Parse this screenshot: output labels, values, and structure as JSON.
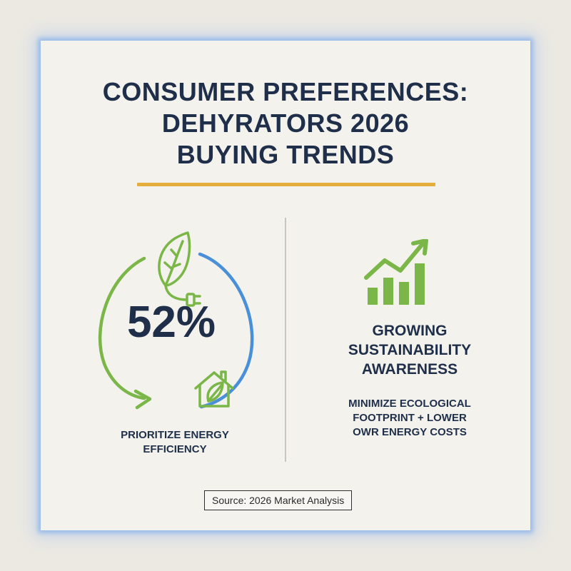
{
  "title": {
    "line1": "CONSUMER PREFERENCES:",
    "line2": "DEHYRATORS 2026",
    "line3": "BUYING TRENDS"
  },
  "left_panel": {
    "percent": "52%",
    "caption_line1": "PRIORITIZE ENERGY",
    "caption_line2": "EFFICIENCY",
    "icons": [
      "leaf-plug-icon",
      "eco-house-icon",
      "cycle-arrows-icon"
    ]
  },
  "right_panel": {
    "heading_line1": "GROWING",
    "heading_line2": "SUSTAINABILITY",
    "heading_line3": "AWARENESS",
    "sub_line1": "MINIMIZE ECOLOGICAL",
    "sub_line2": "FOOTPRINT + LOWER",
    "sub_line3": "OWR ENERGY COSTS",
    "icons": [
      "growth-chart-icon"
    ]
  },
  "source": "Source: 2026 Market Analysis",
  "colors": {
    "navy": "#1f2f4a",
    "green": "#7ab648",
    "blue": "#4a90d9",
    "gold": "#e5ad3c",
    "card": "#f4f2ec",
    "background": "#ece9e2"
  }
}
